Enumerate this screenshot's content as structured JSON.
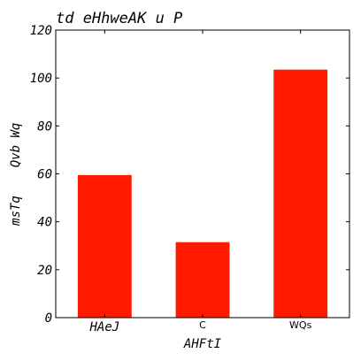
{
  "chart_data": {
    "type": "bar",
    "title": "td eHhweAK u P",
    "xlabel": "AHFtI",
    "ylabel_lines": [
      "Qvb Wq",
      "msTq"
    ],
    "categories": [
      "HAeJ",
      "C",
      "WQs"
    ],
    "values": [
      59.5,
      31.5,
      103.5
    ],
    "ylim": [
      0,
      120
    ],
    "yticks": [
      0,
      20,
      40,
      60,
      80,
      100,
      120
    ],
    "colors": {
      "bar": "#ff1a00",
      "frame": "#000000",
      "background": "#ffffff"
    },
    "grid": false,
    "legend": "none"
  }
}
